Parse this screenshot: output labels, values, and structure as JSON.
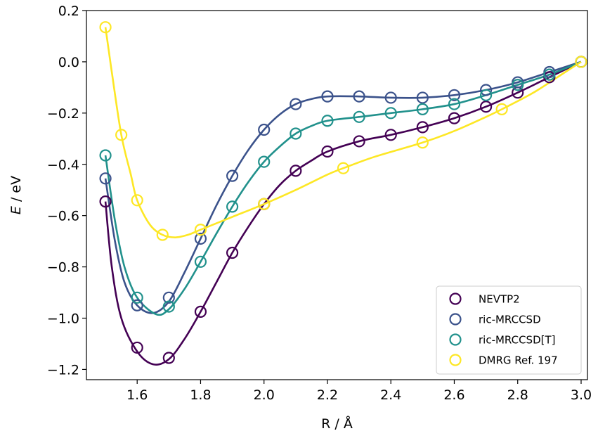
{
  "chart_data": {
    "type": "scatter",
    "xlabel": "R / Å",
    "ylabel_italic": "E",
    "ylabel_unit": " / eV",
    "xlim": [
      1.44,
      3.02
    ],
    "ylim": [
      -1.24,
      0.2
    ],
    "xticks": [
      1.6,
      1.8,
      2.0,
      2.2,
      2.4,
      2.6,
      2.8,
      3.0
    ],
    "xtick_labels": [
      "1.6",
      "1.8",
      "2.0",
      "2.2",
      "2.4",
      "2.6",
      "2.8",
      "3.0"
    ],
    "yticks": [
      0.2,
      0.0,
      -0.2,
      -0.4,
      -0.6,
      -0.8,
      -1.0,
      -1.2
    ],
    "ytick_labels": [
      "0.2",
      "0.0",
      "−0.2",
      "−0.4",
      "−0.6",
      "−0.8",
      "−1.0",
      "−1.2"
    ],
    "grid": false,
    "legend_position": "bottom-right",
    "series": [
      {
        "name": "NEVTP2",
        "color": "#440154",
        "points": [
          [
            1.5,
            -0.545
          ],
          [
            1.6,
            -1.115
          ],
          [
            1.7,
            -1.155
          ],
          [
            1.8,
            -0.975
          ],
          [
            1.9,
            -0.745
          ],
          [
            2.0,
            -0.555
          ],
          [
            2.1,
            -0.425
          ],
          [
            2.2,
            -0.35
          ],
          [
            2.3,
            -0.31
          ],
          [
            2.4,
            -0.285
          ],
          [
            2.5,
            -0.255
          ],
          [
            2.6,
            -0.22
          ],
          [
            2.7,
            -0.175
          ],
          [
            2.8,
            -0.12
          ],
          [
            2.9,
            -0.06
          ],
          [
            3.0,
            0.0
          ]
        ],
        "curve": [
          [
            1.5,
            -0.545
          ],
          [
            1.52,
            -0.8
          ],
          [
            1.55,
            -1.0
          ],
          [
            1.6,
            -1.13
          ],
          [
            1.65,
            -1.18
          ],
          [
            1.7,
            -1.16
          ],
          [
            1.75,
            -1.08
          ],
          [
            1.8,
            -0.975
          ],
          [
            1.85,
            -0.86
          ],
          [
            1.9,
            -0.745
          ],
          [
            1.95,
            -0.645
          ],
          [
            2.0,
            -0.555
          ],
          [
            2.05,
            -0.48
          ],
          [
            2.1,
            -0.425
          ],
          [
            2.15,
            -0.385
          ],
          [
            2.2,
            -0.35
          ],
          [
            2.3,
            -0.31
          ],
          [
            2.4,
            -0.285
          ],
          [
            2.5,
            -0.255
          ],
          [
            2.6,
            -0.22
          ],
          [
            2.7,
            -0.175
          ],
          [
            2.8,
            -0.12
          ],
          [
            2.9,
            -0.06
          ],
          [
            3.0,
            0.0
          ]
        ]
      },
      {
        "name": "ric-MRCCSD",
        "color": "#3b528b",
        "points": [
          [
            1.5,
            -0.455
          ],
          [
            1.6,
            -0.95
          ],
          [
            1.7,
            -0.92
          ],
          [
            1.8,
            -0.69
          ],
          [
            1.9,
            -0.445
          ],
          [
            2.0,
            -0.265
          ],
          [
            2.1,
            -0.165
          ],
          [
            2.2,
            -0.135
          ],
          [
            2.3,
            -0.135
          ],
          [
            2.4,
            -0.14
          ],
          [
            2.5,
            -0.14
          ],
          [
            2.6,
            -0.13
          ],
          [
            2.7,
            -0.11
          ],
          [
            2.8,
            -0.08
          ],
          [
            2.9,
            -0.04
          ],
          [
            3.0,
            0.0
          ]
        ],
        "curve": [
          [
            1.5,
            -0.455
          ],
          [
            1.53,
            -0.7
          ],
          [
            1.56,
            -0.86
          ],
          [
            1.6,
            -0.95
          ],
          [
            1.65,
            -0.98
          ],
          [
            1.7,
            -0.935
          ],
          [
            1.75,
            -0.82
          ],
          [
            1.8,
            -0.69
          ],
          [
            1.85,
            -0.56
          ],
          [
            1.9,
            -0.445
          ],
          [
            1.95,
            -0.345
          ],
          [
            2.0,
            -0.265
          ],
          [
            2.05,
            -0.205
          ],
          [
            2.1,
            -0.165
          ],
          [
            2.15,
            -0.145
          ],
          [
            2.2,
            -0.135
          ],
          [
            2.3,
            -0.135
          ],
          [
            2.4,
            -0.14
          ],
          [
            2.5,
            -0.14
          ],
          [
            2.6,
            -0.13
          ],
          [
            2.7,
            -0.11
          ],
          [
            2.8,
            -0.08
          ],
          [
            2.9,
            -0.04
          ],
          [
            3.0,
            0.0
          ]
        ]
      },
      {
        "name": "ric-MRCCSD[T]",
        "color": "#21918c",
        "points": [
          [
            1.5,
            -0.365
          ],
          [
            1.6,
            -0.92
          ],
          [
            1.7,
            -0.955
          ],
          [
            1.8,
            -0.78
          ],
          [
            1.9,
            -0.565
          ],
          [
            2.0,
            -0.39
          ],
          [
            2.1,
            -0.28
          ],
          [
            2.2,
            -0.23
          ],
          [
            2.3,
            -0.215
          ],
          [
            2.4,
            -0.2
          ],
          [
            2.5,
            -0.185
          ],
          [
            2.6,
            -0.165
          ],
          [
            2.7,
            -0.13
          ],
          [
            2.8,
            -0.09
          ],
          [
            2.9,
            -0.05
          ],
          [
            3.0,
            0.0
          ]
        ],
        "curve": [
          [
            1.5,
            -0.365
          ],
          [
            1.53,
            -0.62
          ],
          [
            1.56,
            -0.8
          ],
          [
            1.6,
            -0.92
          ],
          [
            1.66,
            -0.985
          ],
          [
            1.7,
            -0.965
          ],
          [
            1.75,
            -0.885
          ],
          [
            1.8,
            -0.78
          ],
          [
            1.85,
            -0.67
          ],
          [
            1.9,
            -0.565
          ],
          [
            1.95,
            -0.47
          ],
          [
            2.0,
            -0.39
          ],
          [
            2.05,
            -0.33
          ],
          [
            2.1,
            -0.28
          ],
          [
            2.15,
            -0.25
          ],
          [
            2.2,
            -0.23
          ],
          [
            2.3,
            -0.215
          ],
          [
            2.4,
            -0.2
          ],
          [
            2.5,
            -0.185
          ],
          [
            2.6,
            -0.165
          ],
          [
            2.7,
            -0.13
          ],
          [
            2.8,
            -0.09
          ],
          [
            2.9,
            -0.05
          ],
          [
            3.0,
            0.0
          ]
        ]
      },
      {
        "name": "DMRG Ref. 197",
        "color": "#fde725",
        "points": [
          [
            1.5,
            0.135
          ],
          [
            1.55,
            -0.285
          ],
          [
            1.6,
            -0.54
          ],
          [
            1.68,
            -0.675
          ],
          [
            1.8,
            -0.655
          ],
          [
            2.0,
            -0.555
          ],
          [
            2.25,
            -0.415
          ],
          [
            2.5,
            -0.315
          ],
          [
            2.75,
            -0.185
          ],
          [
            3.0,
            0.0
          ]
        ],
        "curve": [
          [
            1.5,
            0.135
          ],
          [
            1.52,
            -0.04
          ],
          [
            1.55,
            -0.285
          ],
          [
            1.58,
            -0.44
          ],
          [
            1.6,
            -0.54
          ],
          [
            1.64,
            -0.635
          ],
          [
            1.68,
            -0.675
          ],
          [
            1.72,
            -0.685
          ],
          [
            1.76,
            -0.675
          ],
          [
            1.8,
            -0.655
          ],
          [
            1.9,
            -0.605
          ],
          [
            2.0,
            -0.555
          ],
          [
            2.1,
            -0.5
          ],
          [
            2.2,
            -0.44
          ],
          [
            2.25,
            -0.415
          ],
          [
            2.35,
            -0.37
          ],
          [
            2.5,
            -0.315
          ],
          [
            2.6,
            -0.27
          ],
          [
            2.7,
            -0.215
          ],
          [
            2.75,
            -0.185
          ],
          [
            2.85,
            -0.12
          ],
          [
            2.95,
            -0.04
          ],
          [
            3.0,
            0.0
          ]
        ]
      }
    ]
  }
}
